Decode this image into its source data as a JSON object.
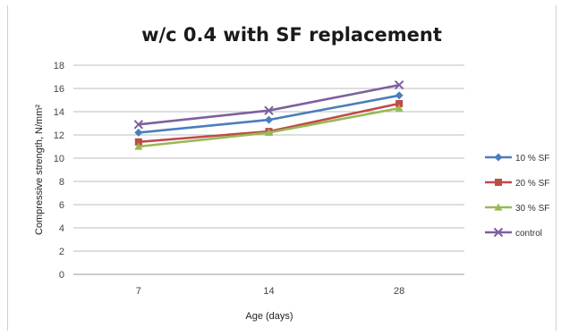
{
  "chart_data": {
    "type": "line",
    "title": "w/c 0.4 with SF replacement",
    "xlabel": "Age (days)",
    "ylabel": "Compressive strength, N/mm²",
    "categories": [
      "7",
      "14",
      "28"
    ],
    "ylim": [
      0,
      18
    ],
    "yticks": [
      0,
      2,
      4,
      6,
      8,
      10,
      12,
      14,
      16,
      18
    ],
    "grid": true,
    "legend_position": "right",
    "series": [
      {
        "name": "10 % SF",
        "values": [
          12.2,
          13.3,
          15.4
        ],
        "color": "#4a7ebb",
        "marker": "diamond"
      },
      {
        "name": "20 % SF",
        "values": [
          11.4,
          12.3,
          14.7
        ],
        "color": "#be4b48",
        "marker": "square"
      },
      {
        "name": "30 % SF",
        "values": [
          11.0,
          12.2,
          14.3
        ],
        "color": "#98b954",
        "marker": "triangle"
      },
      {
        "name": "control",
        "values": [
          12.9,
          14.1,
          16.3
        ],
        "color": "#7d60a0",
        "marker": "x"
      }
    ]
  }
}
